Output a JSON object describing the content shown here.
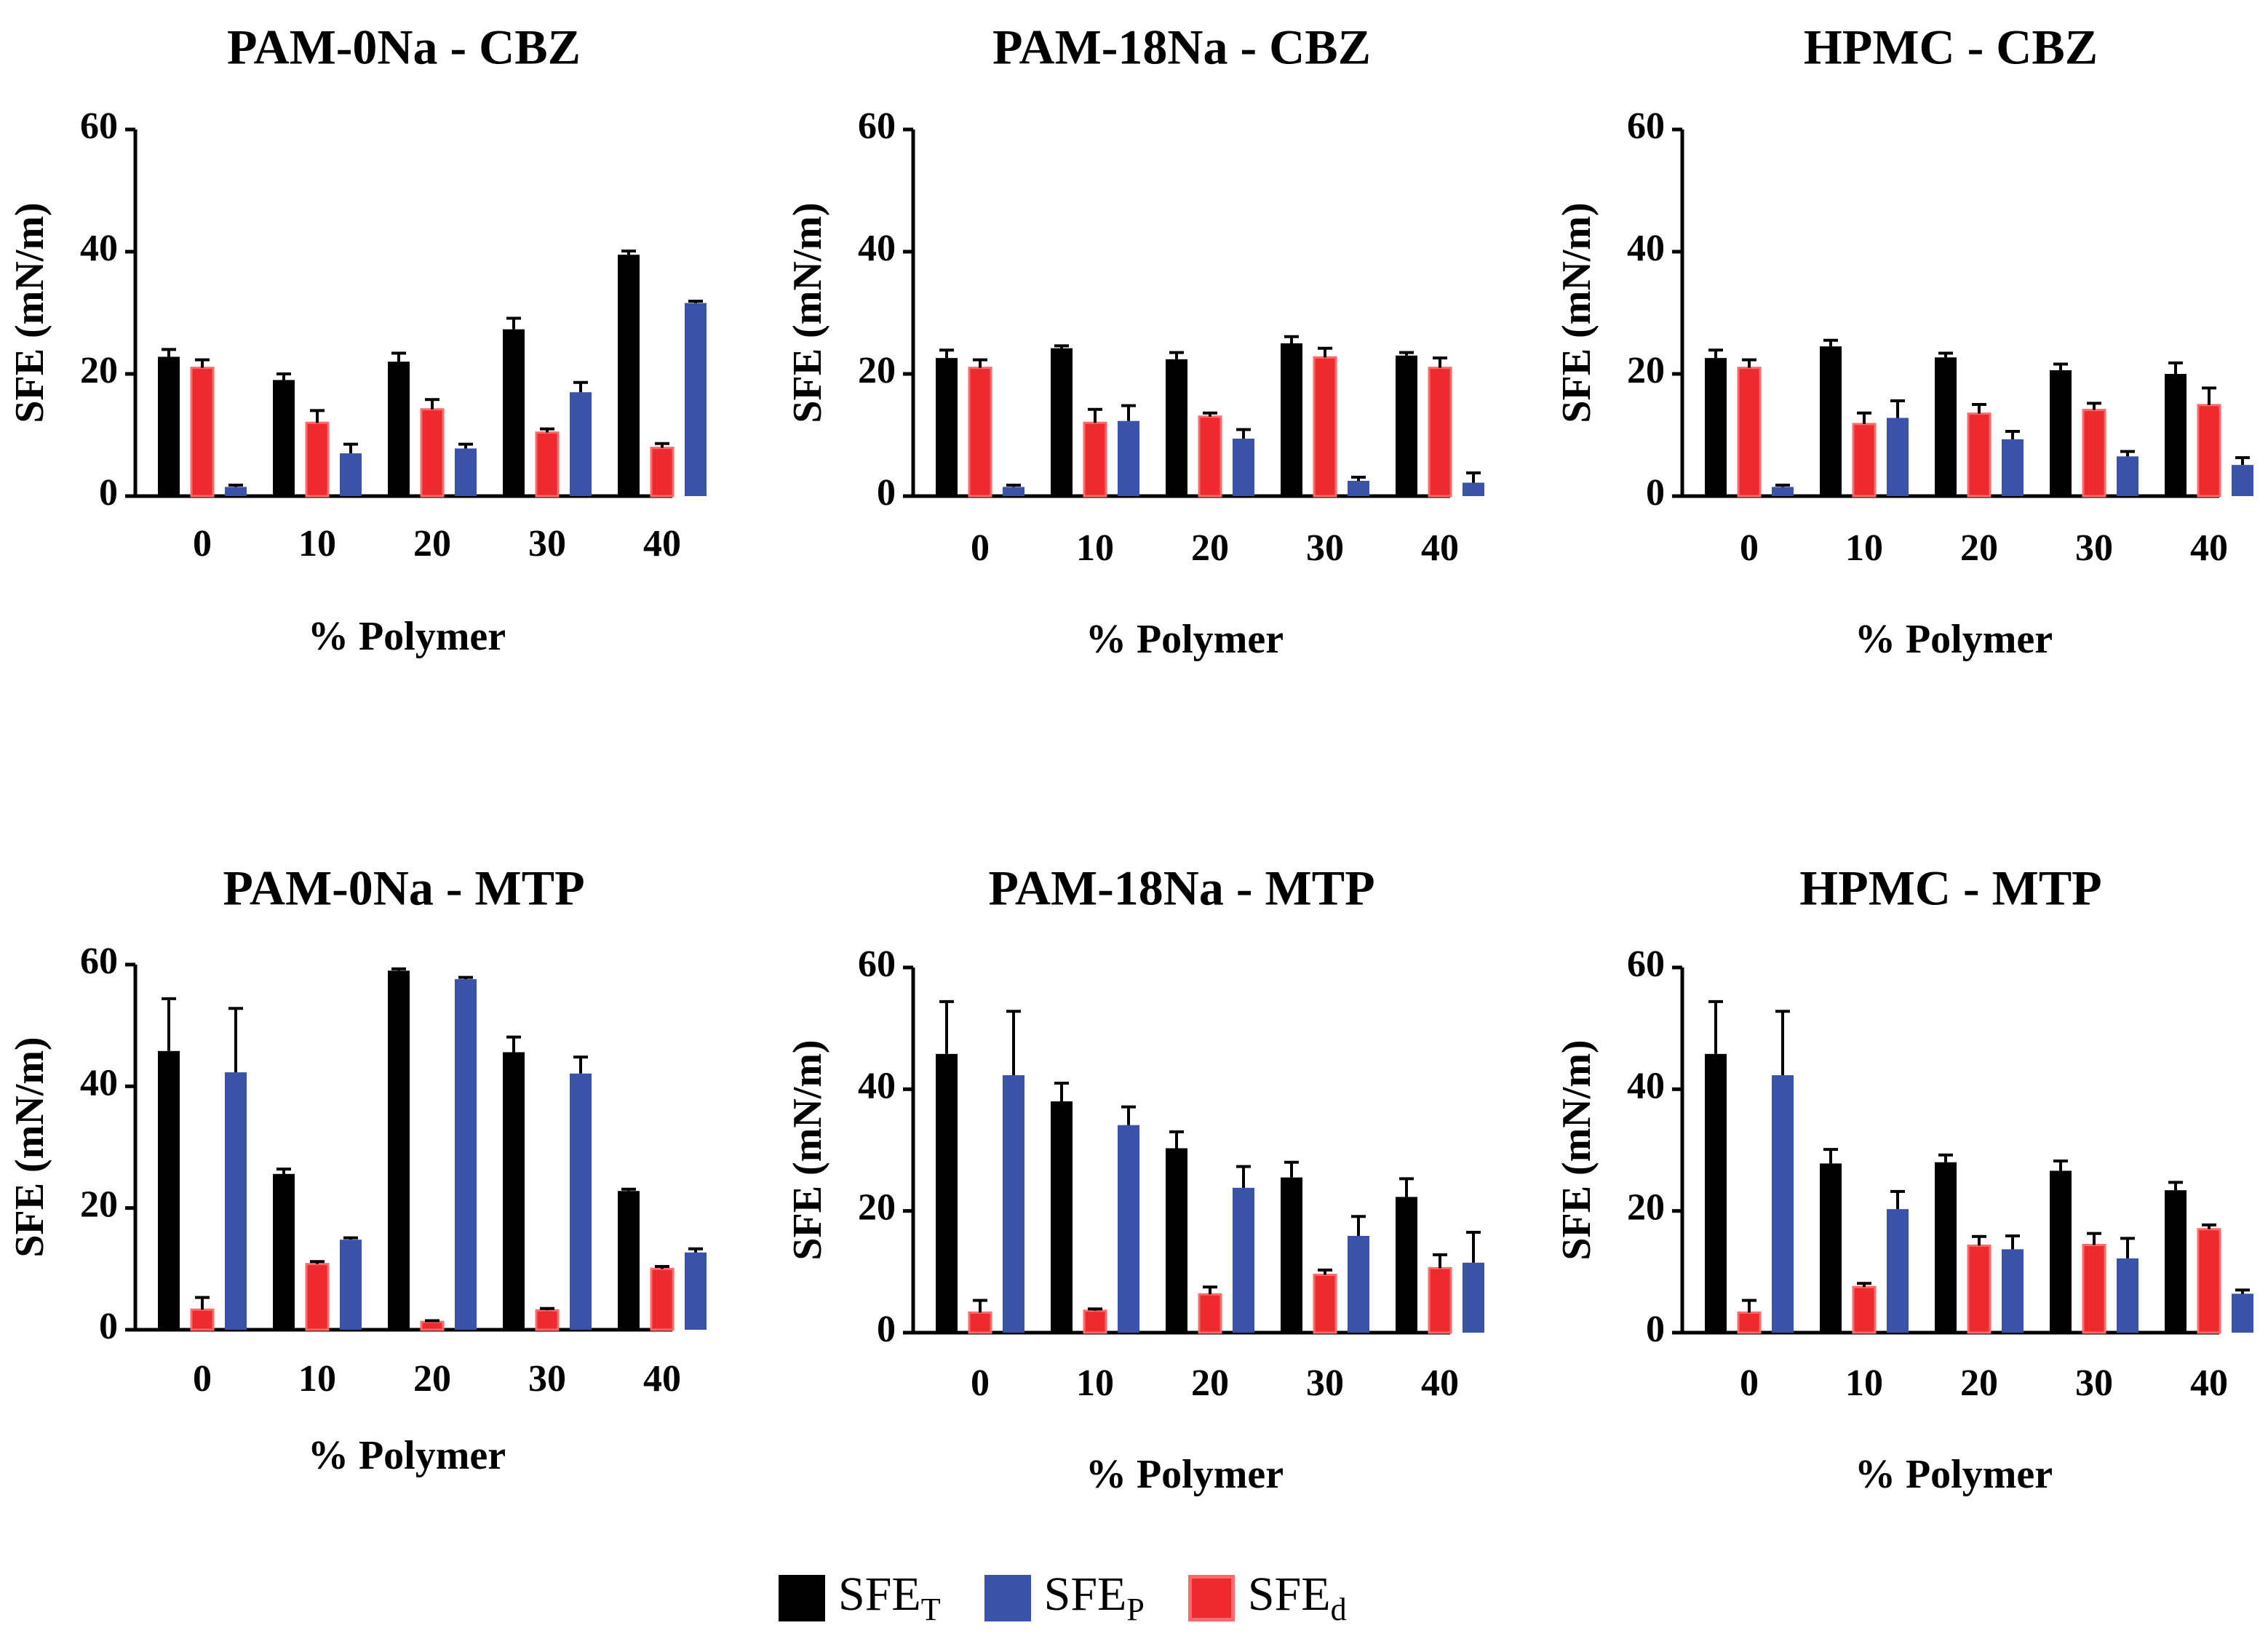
{
  "colors": {
    "sfe_t": "#000000",
    "sfe_p": "#3a52a7",
    "sfe_d": "#ee2a2e",
    "sfe_d_border": "#ff6b6b"
  },
  "legend": [
    {
      "key": "sfe_t",
      "base": "SFE",
      "sub": "T"
    },
    {
      "key": "sfe_p",
      "base": "SFE",
      "sub": "P"
    },
    {
      "key": "sfe_d",
      "base": "SFE",
      "sub": "d"
    }
  ],
  "chart_data": [
    {
      "type": "bar",
      "title": "PAM-0Na - CBZ",
      "xlabel": "% Polymer",
      "ylabel": "SFE (mN/m)",
      "ylim": [
        0,
        60
      ],
      "yticks": [
        "0",
        "20",
        "40",
        "60"
      ],
      "categories": [
        "0",
        "10",
        "20",
        "30",
        "40"
      ],
      "series": [
        {
          "key": "sfe_t",
          "values": [
            22.8,
            19.0,
            22.0,
            27.3,
            39.5
          ],
          "errors": [
            1.2,
            1.0,
            1.4,
            1.8,
            0.6
          ]
        },
        {
          "key": "sfe_d",
          "values": [
            21.0,
            12.0,
            14.2,
            10.4,
            7.9
          ],
          "errors": [
            1.3,
            2.0,
            1.6,
            0.6,
            0.7
          ]
        },
        {
          "key": "sfe_p",
          "values": [
            1.5,
            7.0,
            7.8,
            17.0,
            31.6
          ],
          "errors": [
            0.3,
            1.5,
            0.7,
            1.6,
            0.3
          ]
        }
      ]
    },
    {
      "type": "bar",
      "title": "PAM-18Na - CBZ",
      "xlabel": "% Polymer",
      "ylabel": "SFE (mN/m)",
      "ylim": [
        0,
        60
      ],
      "yticks": [
        "0",
        "20",
        "40",
        "60"
      ],
      "categories": [
        "0",
        "10",
        "20",
        "30",
        "40"
      ],
      "series": [
        {
          "key": "sfe_t",
          "values": [
            22.6,
            24.2,
            22.4,
            25.0,
            23.0
          ],
          "errors": [
            1.3,
            0.4,
            1.1,
            1.1,
            0.5
          ]
        },
        {
          "key": "sfe_d",
          "values": [
            21.0,
            12.0,
            13.0,
            22.7,
            21.0
          ],
          "errors": [
            1.3,
            2.2,
            0.6,
            1.5,
            1.6
          ]
        },
        {
          "key": "sfe_p",
          "values": [
            1.5,
            12.3,
            9.4,
            2.5,
            2.2
          ],
          "errors": [
            0.3,
            2.5,
            1.5,
            0.6,
            1.6
          ]
        }
      ]
    },
    {
      "type": "bar",
      "title": "HPMC - CBZ",
      "xlabel": "% Polymer",
      "ylabel": "SFE (mN/m)",
      "ylim": [
        0,
        60
      ],
      "yticks": [
        "0",
        "20",
        "40",
        "60"
      ],
      "categories": [
        "0",
        "10",
        "20",
        "30",
        "40"
      ],
      "series": [
        {
          "key": "sfe_t",
          "values": [
            22.6,
            24.5,
            22.7,
            20.6,
            20.0
          ],
          "errors": [
            1.3,
            1.0,
            0.7,
            1.0,
            1.8
          ]
        },
        {
          "key": "sfe_d",
          "values": [
            21.0,
            11.8,
            13.5,
            14.1,
            14.9
          ],
          "errors": [
            1.3,
            1.8,
            1.5,
            1.1,
            2.8
          ]
        },
        {
          "key": "sfe_p",
          "values": [
            1.5,
            12.8,
            9.3,
            6.5,
            5.1
          ],
          "errors": [
            0.3,
            2.8,
            1.3,
            0.8,
            1.2
          ]
        }
      ]
    },
    {
      "type": "bar",
      "title": "PAM-0Na - MTP",
      "xlabel": "% Polymer",
      "ylabel": "SFE (mN/m)",
      "ylim": [
        0,
        60
      ],
      "yticks": [
        "0",
        "20",
        "40",
        "60"
      ],
      "categories": [
        "0",
        "10",
        "20",
        "30",
        "40"
      ],
      "series": [
        {
          "key": "sfe_t",
          "values": [
            45.8,
            25.6,
            59.0,
            45.6,
            22.8
          ],
          "errors": [
            8.6,
            0.8,
            0.3,
            2.5,
            0.3
          ]
        },
        {
          "key": "sfe_d",
          "values": [
            3.3,
            10.8,
            1.3,
            3.2,
            10.0
          ],
          "errors": [
            2.0,
            0.4,
            0.2,
            0.3,
            0.4
          ]
        },
        {
          "key": "sfe_p",
          "values": [
            42.3,
            14.8,
            57.6,
            42.1,
            12.7
          ],
          "errors": [
            10.5,
            0.3,
            0.3,
            2.7,
            0.6
          ]
        }
      ]
    },
    {
      "type": "bar",
      "title": "PAM-18Na - MTP",
      "xlabel": "% Polymer",
      "ylabel": "SFE (mN/m)",
      "ylim": [
        0,
        60
      ],
      "yticks": [
        "0",
        "20",
        "40",
        "60"
      ],
      "categories": [
        "0",
        "10",
        "20",
        "30",
        "40"
      ],
      "series": [
        {
          "key": "sfe_t",
          "values": [
            45.8,
            38.0,
            30.3,
            25.5,
            22.3
          ],
          "errors": [
            8.6,
            3.0,
            2.7,
            2.5,
            3.0
          ]
        },
        {
          "key": "sfe_d",
          "values": [
            3.3,
            3.6,
            6.3,
            9.5,
            10.6
          ],
          "errors": [
            2.0,
            0.3,
            1.2,
            0.8,
            2.2
          ]
        },
        {
          "key": "sfe_p",
          "values": [
            42.3,
            34.1,
            23.8,
            15.9,
            11.5
          ],
          "errors": [
            10.5,
            3.0,
            3.5,
            3.2,
            5.0
          ]
        }
      ]
    },
    {
      "type": "bar",
      "title": "HPMC - MTP",
      "xlabel": "% Polymer",
      "ylabel": "SFE (mN/m)",
      "ylim": [
        0,
        60
      ],
      "yticks": [
        "0",
        "20",
        "40",
        "60"
      ],
      "categories": [
        "0",
        "10",
        "20",
        "30",
        "40"
      ],
      "series": [
        {
          "key": "sfe_t",
          "values": [
            45.8,
            27.8,
            28.0,
            26.6,
            23.4
          ],
          "errors": [
            8.6,
            2.3,
            1.2,
            1.6,
            1.3
          ]
        },
        {
          "key": "sfe_d",
          "values": [
            3.3,
            7.5,
            14.3,
            14.4,
            17.0
          ],
          "errors": [
            2.0,
            0.6,
            1.5,
            1.9,
            0.7
          ]
        },
        {
          "key": "sfe_p",
          "values": [
            42.3,
            20.3,
            13.7,
            12.2,
            6.4
          ],
          "errors": [
            10.5,
            2.9,
            2.2,
            3.3,
            0.6
          ]
        }
      ]
    }
  ]
}
